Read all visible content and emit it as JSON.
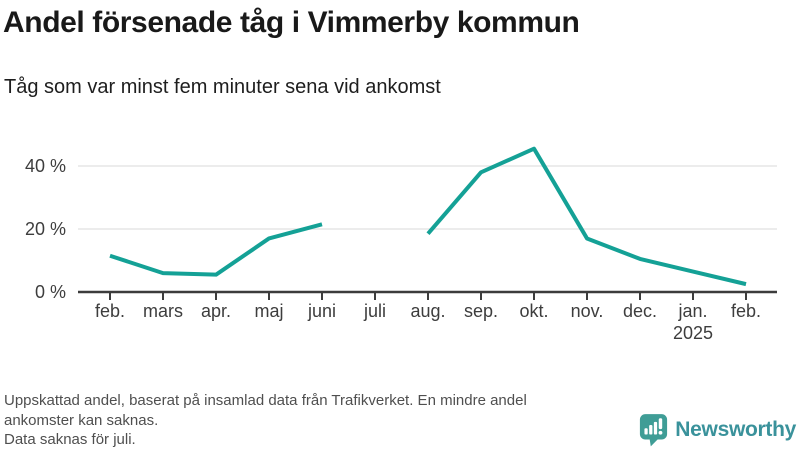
{
  "chart_data": {
    "type": "line",
    "title": "Andel försenade tåg i Vimmerby kommun",
    "subtitle": "Tåg som var minst fem minuter sena vid ankomst",
    "unit": "%",
    "categories": [
      "feb.",
      "mars",
      "apr.",
      "maj",
      "juni",
      "juli",
      "aug.",
      "sep.",
      "okt.",
      "nov.",
      "dec.",
      "jan.",
      "feb."
    ],
    "year_annotation": {
      "index": 11,
      "label": "2025"
    },
    "values": [
      11.5,
      6,
      5.5,
      17,
      21.5,
      null,
      18.5,
      38,
      45.5,
      17,
      10.5,
      6.5,
      2.5
    ],
    "y_axis": {
      "ticks": [
        0,
        20,
        40
      ],
      "tick_labels": [
        "0 %",
        "20 %",
        "40 %"
      ],
      "range": [
        0,
        47
      ]
    },
    "grid": "horizontal-light",
    "legend": "none",
    "line_color": "#14a196",
    "axis_color": "#3c3c3c",
    "grid_color": "#e6e6e6",
    "missing_segment": "juli"
  },
  "footer": {
    "note_lines": [
      "Uppskattad andel, baserat på insamlad data från Trafikverket. En mindre andel",
      "ankomster kan saknas.",
      "Data saknas för juli."
    ],
    "logo": {
      "text": "Newsworthy",
      "icon": "speech-bubble-bar-chart-exclamation",
      "icon_color": "#3f9d96",
      "text_color": "#3a929b"
    }
  }
}
